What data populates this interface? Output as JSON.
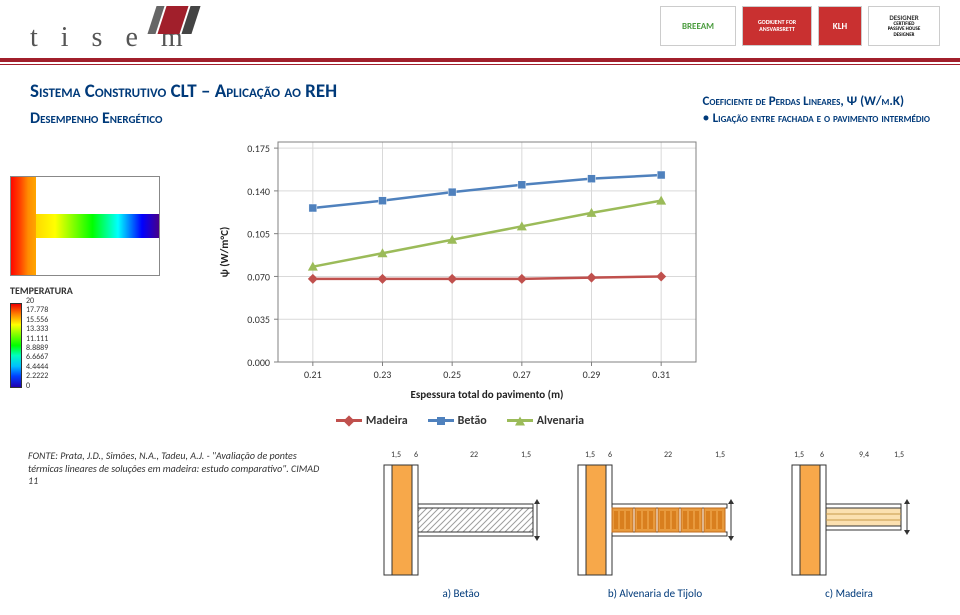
{
  "header": {
    "logo_text": "t i s e m",
    "badges": {
      "breeam": {
        "text": "BREEAM",
        "color": "#4a9c3e"
      },
      "godkjent": {
        "text": "GODKJENT FOR\nANSVARSRETT",
        "bg": "#c93030"
      },
      "klh": {
        "text": "KLH",
        "bg": "#c93030"
      },
      "designer": {
        "lines": [
          "DESIGNER",
          "CERTIFIED",
          "PASSIVE HOUSE",
          "DESIGNER"
        ]
      }
    }
  },
  "title": "Sistema Construtivo CLT – Aplicação ao REH",
  "subtitle": "Desempenho Energético",
  "coef_label": "Coeficiente de Perdas Lineares, Ψ (W/m.K)",
  "sub_bullet": "Ligação entre fachada e o pavimento intermédio",
  "thermal": {
    "legend_title": "TEMPERATURA",
    "ticks": [
      "20",
      "17.778",
      "15.556",
      "13.333",
      "11.111",
      "8.8889",
      "6.6667",
      "4.4444",
      "2.2222",
      "0"
    ]
  },
  "chart": {
    "type": "line-scatter",
    "ylabel": "ψ (W/m°C)",
    "xlabel": "Espessura total do pavimento (m)",
    "xticks": [
      0.21,
      0.23,
      0.25,
      0.27,
      0.29,
      0.31
    ],
    "yticks": [
      0.0,
      0.035,
      0.07,
      0.105,
      0.14,
      0.175
    ],
    "xlim": [
      0.2,
      0.32
    ],
    "ylim": [
      0.0,
      0.18
    ],
    "grid_color": "#d9d9d9",
    "axis_color": "#808080",
    "background": "#ffffff",
    "label_fontsize": 11,
    "tick_fontsize": 10,
    "series": [
      {
        "name": "Madeira",
        "color": "#c0504d",
        "marker": "diamond",
        "data": [
          [
            0.21,
            0.068
          ],
          [
            0.23,
            0.068
          ],
          [
            0.25,
            0.068
          ],
          [
            0.27,
            0.068
          ],
          [
            0.29,
            0.069
          ],
          [
            0.31,
            0.07
          ]
        ]
      },
      {
        "name": "Betão",
        "color": "#4f81bd",
        "marker": "square",
        "data": [
          [
            0.21,
            0.126
          ],
          [
            0.23,
            0.132
          ],
          [
            0.25,
            0.139
          ],
          [
            0.27,
            0.145
          ],
          [
            0.29,
            0.15
          ],
          [
            0.31,
            0.153
          ]
        ]
      },
      {
        "name": "Alvenaria",
        "color": "#9bbb59",
        "marker": "triangle",
        "data": [
          [
            0.21,
            0.078
          ],
          [
            0.23,
            0.089
          ],
          [
            0.25,
            0.1
          ],
          [
            0.27,
            0.111
          ],
          [
            0.29,
            0.122
          ],
          [
            0.31,
            0.132
          ]
        ]
      }
    ]
  },
  "citation": "FONTE: Prata, J.D., Simões, N.A., Tadeu, A.J. - \"Avaliação de pontes térmicas lineares de soluções em madeira: estudo comparativo\". CIMAD 11",
  "sections": {
    "a": {
      "caption": "a) Betão",
      "dims": [
        "1,5",
        "6",
        "22",
        "1,5"
      ],
      "wall_fill": "#f7a84a",
      "slab_fill": "#cfcfcf",
      "slab_hatch": "#9e9e9e"
    },
    "b": {
      "caption": "b) Alvenaria de Tijolo",
      "dims": [
        "1,5",
        "6",
        "22",
        "1,5"
      ],
      "wall_fill": "#f7a84a",
      "block_fill": "#e89a3d",
      "block_border": "#c06c1e"
    },
    "c": {
      "caption": "c) Madeira",
      "dims": [
        "1,5",
        "6",
        "9,4",
        "1,5"
      ],
      "wall_fill": "#f7a84a",
      "wood_fill": "#fbe0b0",
      "wood_line": "#c79a4a"
    }
  }
}
